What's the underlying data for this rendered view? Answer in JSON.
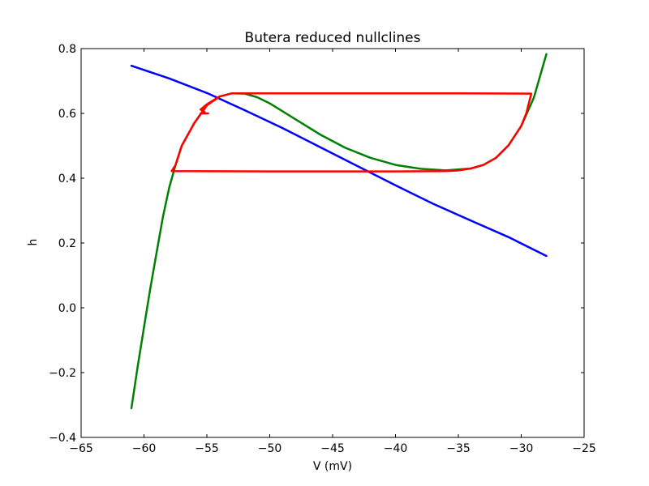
{
  "chart_data": {
    "type": "line",
    "title": "Butera reduced nullclines",
    "xlabel": "V (mV)",
    "ylabel": "h",
    "xlim": [
      -65,
      -25
    ],
    "ylim": [
      -0.4,
      0.8
    ],
    "x_ticks": [
      -65,
      -60,
      -55,
      -50,
      -45,
      -40,
      -35,
      -30,
      -25
    ],
    "y_ticks": [
      -0.4,
      -0.2,
      0.0,
      0.2,
      0.4,
      0.6,
      0.8
    ],
    "x_tick_labels": [
      "−65",
      "−60",
      "−55",
      "−50",
      "−45",
      "−40",
      "−35",
      "−30",
      "−25"
    ],
    "y_tick_labels": [
      "−0.4",
      "−0.2",
      "0.0",
      "0.2",
      "0.4",
      "0.6",
      "0.8"
    ],
    "grid": false,
    "legend": "none",
    "series": [
      {
        "color": "#0000ff",
        "points": [
          [
            -61,
            0.747
          ],
          [
            -58,
            0.708
          ],
          [
            -55,
            0.663
          ],
          [
            -52,
            0.61
          ],
          [
            -49,
            0.555
          ],
          [
            -46,
            0.496
          ],
          [
            -43,
            0.437
          ],
          [
            -40,
            0.378
          ],
          [
            -37,
            0.321
          ],
          [
            -34,
            0.269
          ],
          [
            -31,
            0.218
          ],
          [
            -28,
            0.16
          ]
        ]
      },
      {
        "color": "#008000",
        "points": [
          [
            -61,
            -0.31
          ],
          [
            -60.5,
            -0.18
          ],
          [
            -60,
            -0.06
          ],
          [
            -59.5,
            0.06
          ],
          [
            -59,
            0.17
          ],
          [
            -58.5,
            0.28
          ],
          [
            -58,
            0.37
          ],
          [
            -57.5,
            0.44
          ],
          [
            -57,
            0.5
          ],
          [
            -56,
            0.57
          ],
          [
            -55,
            0.625
          ],
          [
            -54,
            0.652
          ],
          [
            -53,
            0.662
          ],
          [
            -52,
            0.661
          ],
          [
            -51,
            0.65
          ],
          [
            -50,
            0.631
          ],
          [
            -48,
            0.583
          ],
          [
            -46,
            0.535
          ],
          [
            -44,
            0.494
          ],
          [
            -42,
            0.463
          ],
          [
            -40,
            0.441
          ],
          [
            -38,
            0.429
          ],
          [
            -36,
            0.424
          ],
          [
            -34,
            0.43
          ],
          [
            -33,
            0.441
          ],
          [
            -32,
            0.463
          ],
          [
            -31,
            0.502
          ],
          [
            -30,
            0.561
          ],
          [
            -29,
            0.648
          ],
          [
            -28,
            0.783
          ]
        ]
      },
      {
        "color": "#ff0000",
        "points": [
          [
            -54.9,
            0.6
          ],
          [
            -55.5,
            0.6
          ],
          [
            -55.2,
            0.605
          ],
          [
            -55.5,
            0.612
          ],
          [
            -55,
            0.628
          ],
          [
            -54,
            0.652
          ],
          [
            -53,
            0.662
          ],
          [
            -51,
            0.662
          ],
          [
            -45,
            0.662
          ],
          [
            -40,
            0.662
          ],
          [
            -35,
            0.662
          ],
          [
            -29.2,
            0.661
          ],
          [
            -29.6,
            0.6
          ],
          [
            -30,
            0.561
          ],
          [
            -31,
            0.502
          ],
          [
            -32,
            0.463
          ],
          [
            -33,
            0.441
          ],
          [
            -34,
            0.43
          ],
          [
            -35,
            0.424
          ],
          [
            -36,
            0.422
          ],
          [
            -40,
            0.421
          ],
          [
            -45,
            0.421
          ],
          [
            -50,
            0.421
          ],
          [
            -57.8,
            0.422
          ],
          [
            -57.5,
            0.44
          ],
          [
            -57,
            0.5
          ],
          [
            -56,
            0.57
          ],
          [
            -55,
            0.625
          ],
          [
            -54,
            0.652
          ],
          [
            -53,
            0.662
          ],
          [
            -51,
            0.662
          ]
        ]
      }
    ]
  }
}
